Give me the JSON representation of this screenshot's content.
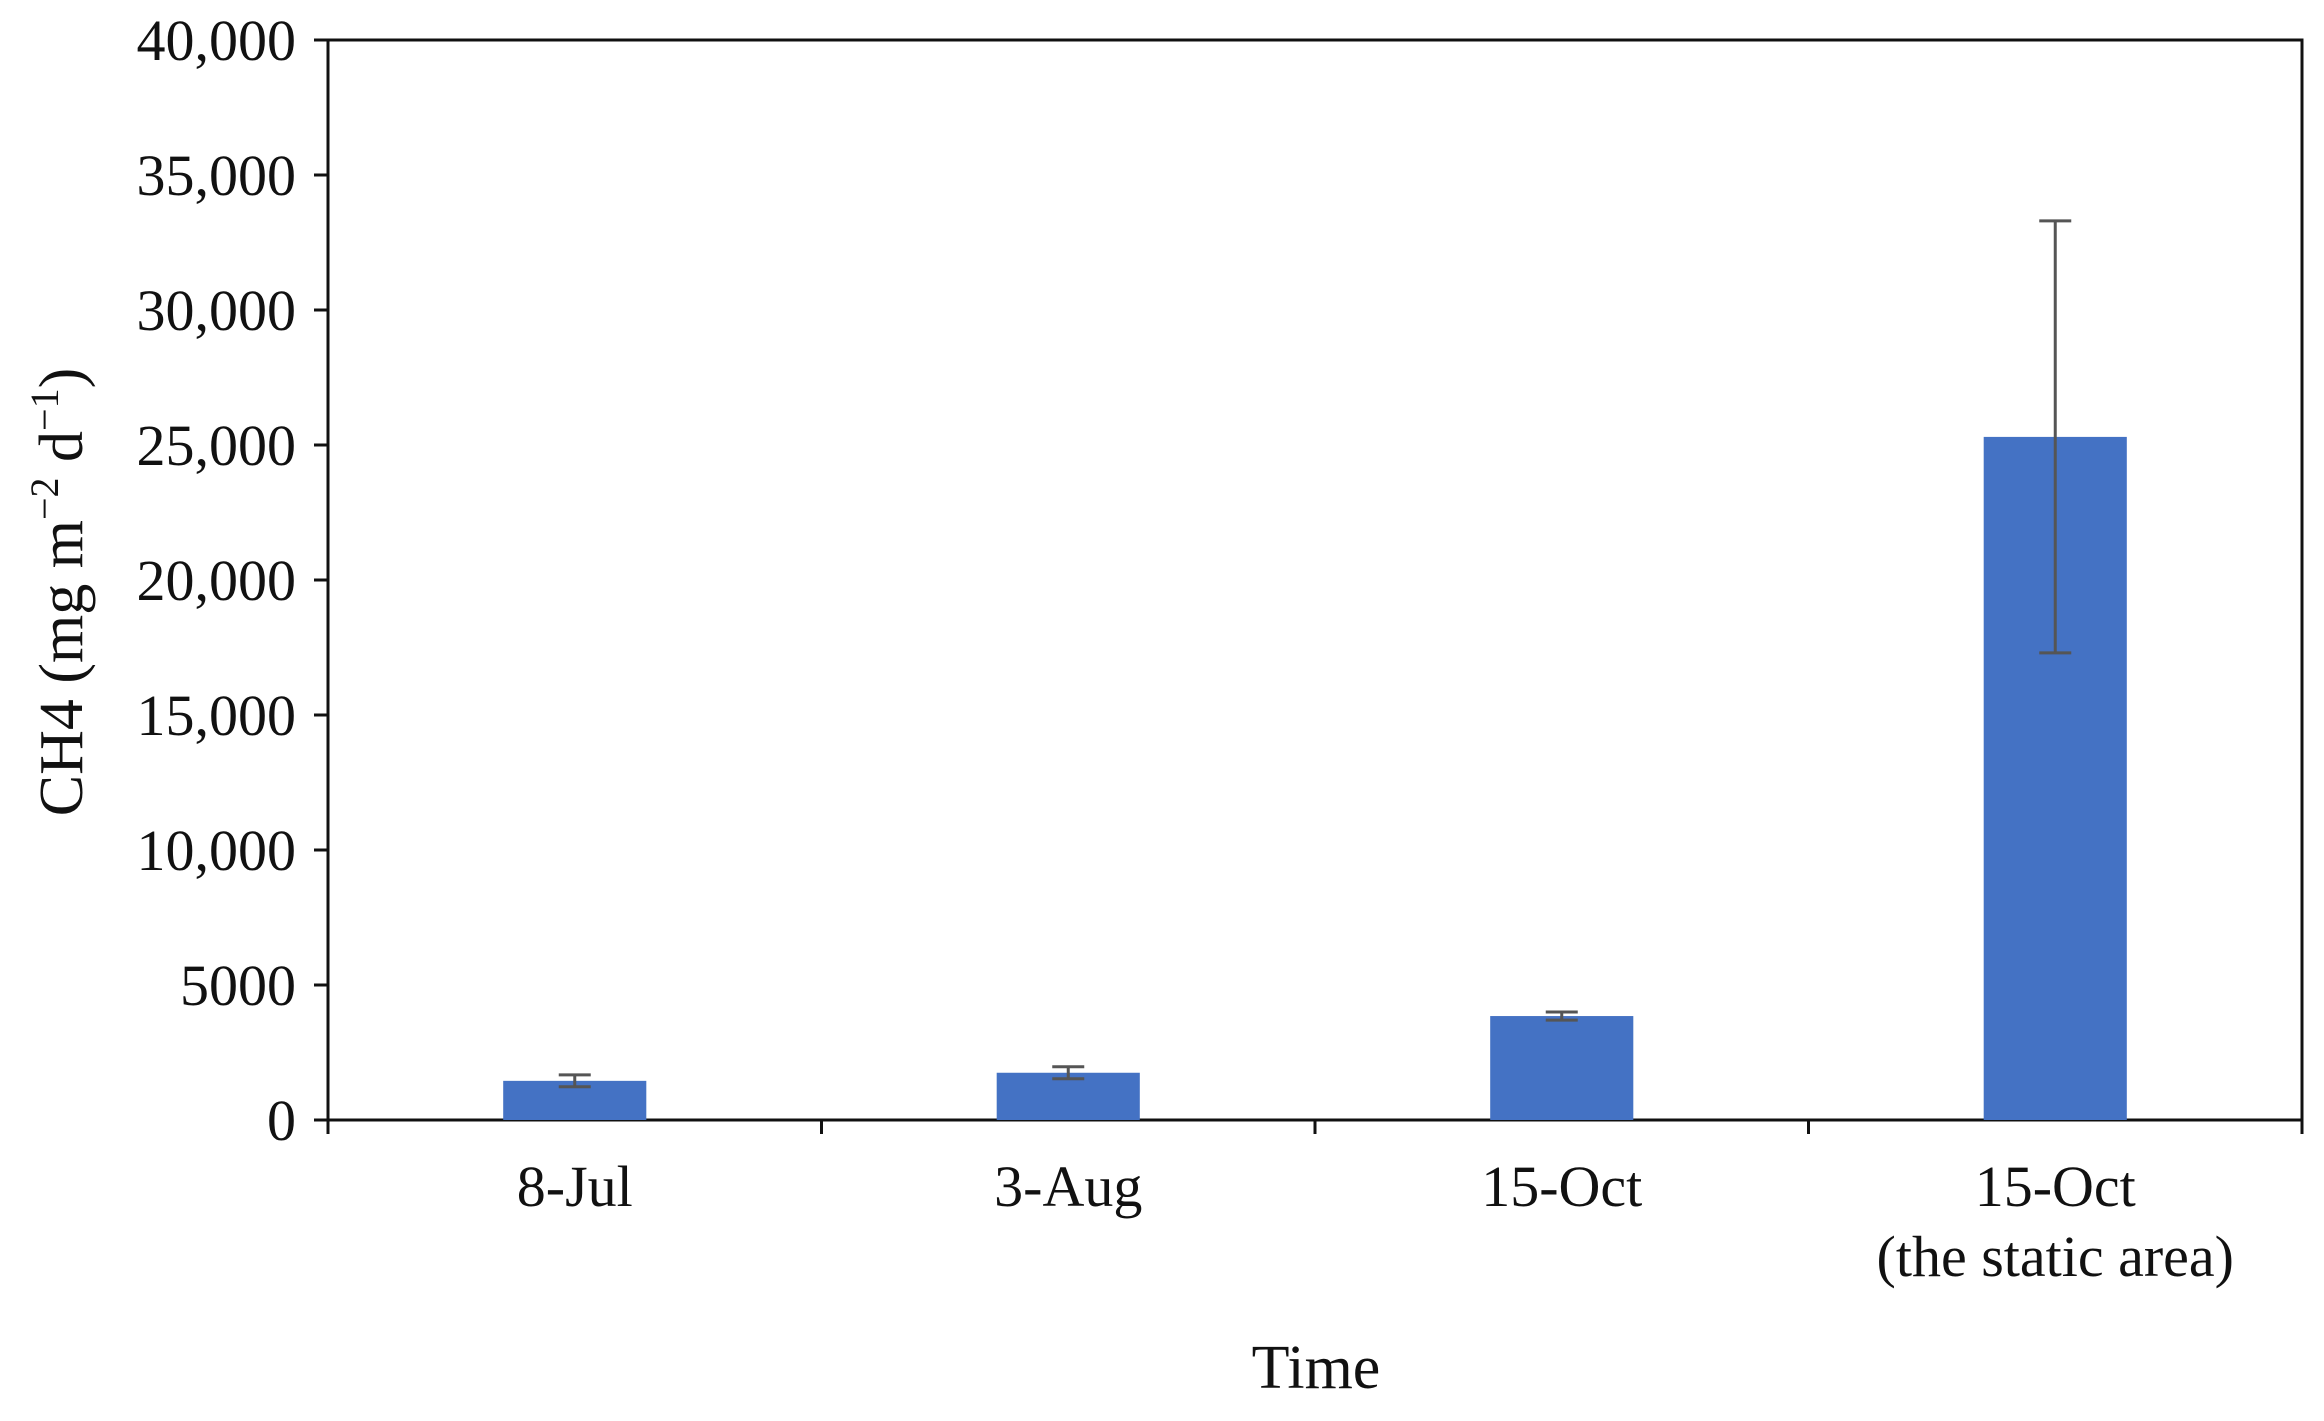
{
  "chart_data": {
    "type": "bar",
    "title": "",
    "xlabel": "Time",
    "ylabel_main": "CH4 (mg m",
    "ylabel_sup1": "−2",
    "ylabel_mid": " d",
    "ylabel_sup2": "−1",
    "ylabel_end": ")",
    "categories": [
      [
        "8-Jul"
      ],
      [
        "3-Aug"
      ],
      [
        "15-Oct"
      ],
      [
        "15-Oct",
        "(the static area)"
      ]
    ],
    "values": [
      1450,
      1750,
      3850,
      25300
    ],
    "error": [
      220,
      220,
      150,
      8000
    ],
    "ylim": [
      0,
      40000
    ],
    "yticks": [
      0,
      5000,
      10000,
      15000,
      20000,
      25000,
      30000,
      35000,
      40000
    ],
    "ytick_labels": [
      "0",
      "5000",
      "10,000",
      "15,000",
      "20,000",
      "25,000",
      "30,000",
      "35,000",
      "40,000"
    ],
    "bar_color": "#4472C4",
    "errorbar_color": "#555555",
    "grid": false,
    "legend": "none"
  }
}
